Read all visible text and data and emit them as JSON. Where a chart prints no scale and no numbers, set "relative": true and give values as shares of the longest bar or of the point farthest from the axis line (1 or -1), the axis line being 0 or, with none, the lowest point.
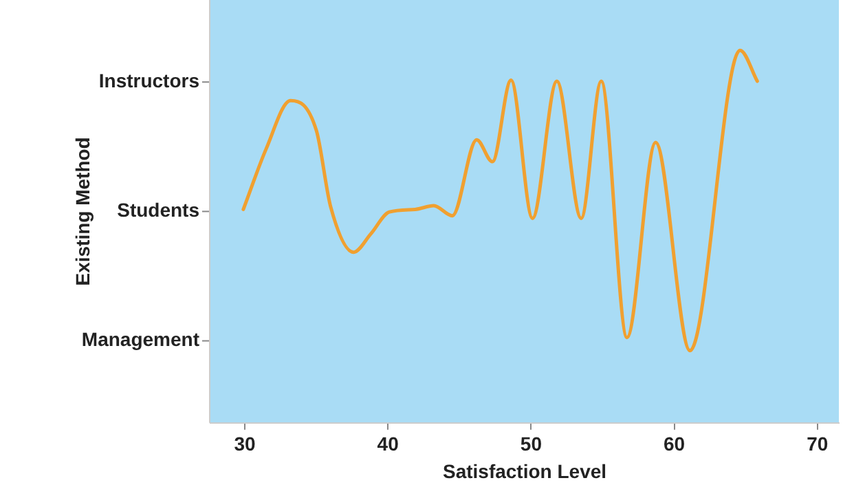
{
  "chart_data": {
    "type": "line",
    "xlabel": "Satisfaction Level",
    "relative": true,
    "x": [
      29.9,
      31.5,
      33.2,
      35,
      36,
      37.6,
      38.8,
      40.1,
      41.9,
      43.2,
      44.5,
      46.2,
      47.3,
      48.6,
      50.1,
      51.8,
      53.5,
      54.9,
      56.7,
      58.7,
      61.1,
      64.6,
      65.8
    ],
    "series": [
      {
        "color": "#f0a030",
        "values": [
          0.573,
          0.736,
          0.865,
          0.785,
          0.58,
          0.458,
          0.507,
          0.566,
          0.573,
          0.583,
          0.556,
          0.76,
          0.701,
          0.92,
          0.549,
          0.917,
          0.549,
          0.917,
          0.229,
          0.753,
          0.194,
          1.0,
          0.917
        ]
      }
    ],
    "xlim": [
      27.6,
      71.5
    ],
    "xticks": [
      30,
      40,
      50,
      60,
      70
    ],
    "annotations": [
      "Existing Method",
      "Instructors",
      "Students",
      "Management"
    ],
    "grid": false,
    "legend": false,
    "marker": "none",
    "line_style": "solid"
  }
}
